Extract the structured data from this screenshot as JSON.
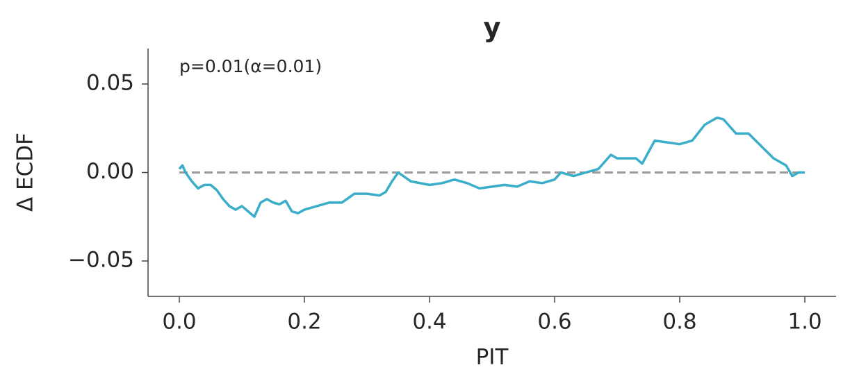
{
  "chart_data": {
    "type": "line",
    "title": "y",
    "xlabel": "PIT",
    "ylabel": "Δ ECDF",
    "annotation": "p=0.01(α=0.01)",
    "color": "#3aadc8",
    "reference_y": 0,
    "reference_color": "#999999",
    "x": [
      0.0,
      0.005,
      0.01,
      0.02,
      0.03,
      0.04,
      0.05,
      0.06,
      0.07,
      0.08,
      0.09,
      0.1,
      0.11,
      0.12,
      0.13,
      0.14,
      0.15,
      0.16,
      0.17,
      0.18,
      0.19,
      0.2,
      0.22,
      0.24,
      0.26,
      0.28,
      0.3,
      0.32,
      0.33,
      0.34,
      0.35,
      0.37,
      0.4,
      0.42,
      0.44,
      0.46,
      0.48,
      0.5,
      0.52,
      0.54,
      0.56,
      0.58,
      0.6,
      0.61,
      0.63,
      0.65,
      0.67,
      0.69,
      0.7,
      0.73,
      0.74,
      0.76,
      0.78,
      0.8,
      0.82,
      0.84,
      0.86,
      0.87,
      0.89,
      0.91,
      0.93,
      0.95,
      0.97,
      0.98,
      0.99,
      1.0
    ],
    "values": [
      0.002,
      0.004,
      0.0,
      -0.005,
      -0.009,
      -0.007,
      -0.007,
      -0.01,
      -0.015,
      -0.019,
      -0.021,
      -0.019,
      -0.022,
      -0.025,
      -0.017,
      -0.015,
      -0.017,
      -0.018,
      -0.016,
      -0.022,
      -0.023,
      -0.021,
      -0.019,
      -0.017,
      -0.017,
      -0.012,
      -0.012,
      -0.013,
      -0.011,
      -0.005,
      0.0,
      -0.005,
      -0.007,
      -0.006,
      -0.004,
      -0.006,
      -0.009,
      -0.008,
      -0.007,
      -0.008,
      -0.005,
      -0.006,
      -0.004,
      0.0,
      -0.002,
      0.0,
      0.002,
      0.01,
      0.008,
      0.008,
      0.005,
      0.018,
      0.017,
      0.016,
      0.018,
      0.027,
      0.031,
      0.03,
      0.022,
      0.022,
      0.015,
      0.008,
      0.004,
      -0.002,
      0.0,
      0.0
    ],
    "xlim": [
      -0.05,
      1.05
    ],
    "ylim": [
      -0.07,
      0.07
    ],
    "xticks": [
      {
        "value": 0,
        "label": "0.0"
      },
      0.2,
      0.4,
      0.6,
      0.8,
      {
        "value": 1,
        "label": "1.0"
      }
    ],
    "yticks": [
      {
        "value": -0.05,
        "label": "−0.05"
      },
      {
        "value": 0,
        "label": "0.00"
      },
      0.05
    ]
  }
}
